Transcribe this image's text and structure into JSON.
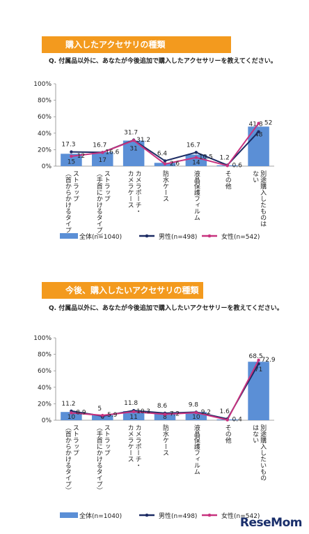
{
  "colors": {
    "banner": "#f39a1e",
    "bar": "#5b8fd6",
    "male": "#1c2b63",
    "female": "#c8327f"
  },
  "watermark": "ReseMom",
  "chart_data": [
    {
      "type": "bar",
      "banner": "購入したアクセサリの種類",
      "question": "Q. 付属品以外に、あなたが今後追加で購入したアクセサリーを教えてください。",
      "categories": [
        "ストラップ（首からかけるタイプ）",
        "ストラップ（手首にかけるタイプ）",
        "カメラポーチ・カメラケース",
        "防水ケース",
        "液晶保護フィルム",
        "その他",
        "別途購入したものはない"
      ],
      "yticks": [
        "100%",
        "80%",
        "60%",
        "40%",
        "20%",
        "0%"
      ],
      "ylim": [
        0,
        100
      ],
      "series": [
        {
          "name": "全体(n=1040)",
          "kind": "bar",
          "values": [
            15,
            17,
            31,
            4,
            14,
            1,
            48
          ],
          "labels": [
            "15",
            "17",
            "31",
            "4",
            "14",
            "",
            "48"
          ]
        },
        {
          "name": "男性(n=498)",
          "kind": "line",
          "values": [
            17.3,
            16.7,
            31.7,
            6.4,
            16.7,
            1.2,
            41.8
          ],
          "labels": [
            "17.3",
            "16.7",
            "31.7",
            "6.4",
            "16.7",
            "1.2",
            "41.8"
          ]
        },
        {
          "name": "女性(n=542)",
          "kind": "line",
          "values": [
            12,
            16.6,
            31.2,
            2.6,
            10.5,
            0.6,
            52
          ],
          "labels": [
            "12",
            "16.6",
            "31.2",
            "2.6",
            "10.5",
            "0.6",
            "52"
          ]
        }
      ]
    },
    {
      "type": "bar",
      "banner": "今後、購入したいアクセサリの種類",
      "question": "Q. 付属品以外に、あなたが今後追加で購入したいアクセサリーを教えてください。",
      "categories": [
        "ストラップ（首からかけるタイプ）",
        "ストラップ（手首にかけるタイプ）",
        "カメラポーチ・カメラケース",
        "防水ケース",
        "液晶保護フィルム",
        "その他",
        "別途購入したいものはない"
      ],
      "yticks": [
        "100%",
        "80%",
        "60%",
        "40%",
        "20%",
        "0%"
      ],
      "ylim": [
        0,
        100
      ],
      "series": [
        {
          "name": "全体(n=1040)",
          "kind": "bar",
          "values": [
            10,
            6,
            11,
            8,
            10,
            1,
            71
          ],
          "labels": [
            "10",
            "6",
            "11",
            "8",
            "10",
            "",
            "71"
          ]
        },
        {
          "name": "男性(n=498)",
          "kind": "line",
          "values": [
            11.2,
            5,
            11.8,
            8.6,
            9.8,
            1.6,
            68.5
          ],
          "labels": [
            "11.2",
            "5",
            "11.8",
            "8.6",
            "9.8",
            "1.6",
            "68.5"
          ]
        },
        {
          "name": "女性(n=542)",
          "kind": "line",
          "values": [
            8.9,
            5.9,
            10.3,
            7.2,
            9.2,
            0.4,
            72.9
          ],
          "labels": [
            "8.9",
            "5.9",
            "10.3",
            "7.2",
            "9.2",
            "0.4",
            "72.9"
          ]
        }
      ]
    }
  ]
}
